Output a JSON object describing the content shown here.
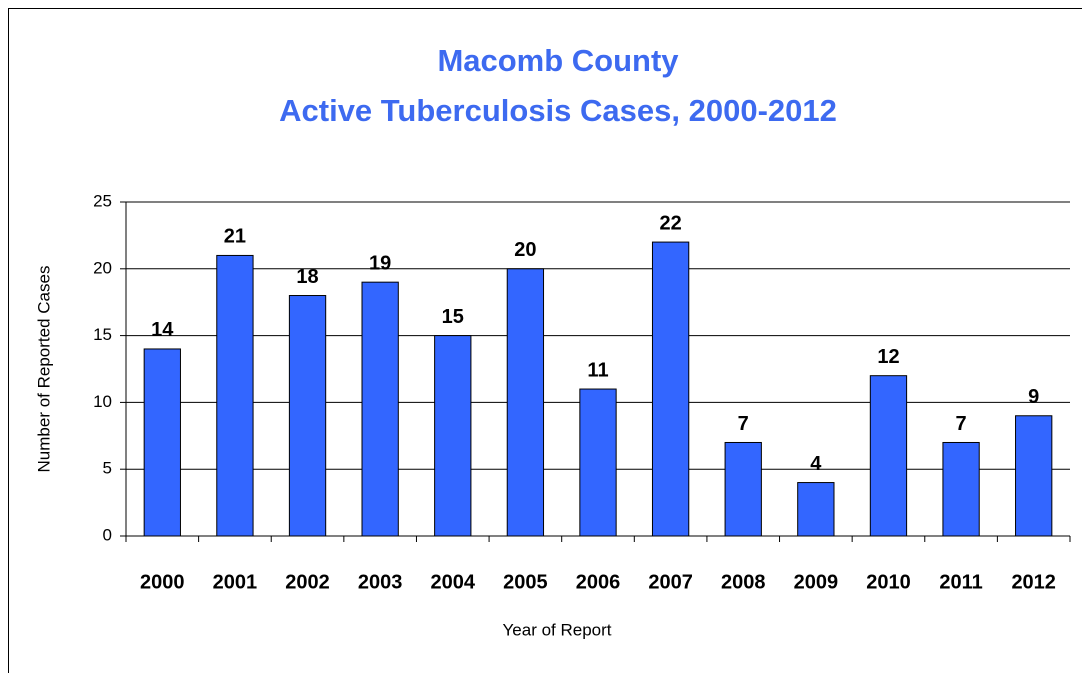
{
  "chart_data": {
    "type": "bar",
    "title": [
      "Macomb County",
      "Active Tuberculosis Cases, 2000-2012"
    ],
    "x_label": "Year of Report",
    "y_label": "Number of Reported Cases",
    "categories": [
      "2000",
      "2001",
      "2002",
      "2003",
      "2004",
      "2005",
      "2006",
      "2007",
      "2008",
      "2009",
      "2010",
      "2011",
      "2012"
    ],
    "values": [
      14,
      21,
      18,
      19,
      15,
      20,
      11,
      22,
      7,
      4,
      12,
      7,
      9
    ],
    "color": "#3366ff",
    "ylim": [
      0,
      25
    ],
    "yticks": [
      0,
      5,
      10,
      15,
      20,
      25
    ],
    "grid": true
  }
}
